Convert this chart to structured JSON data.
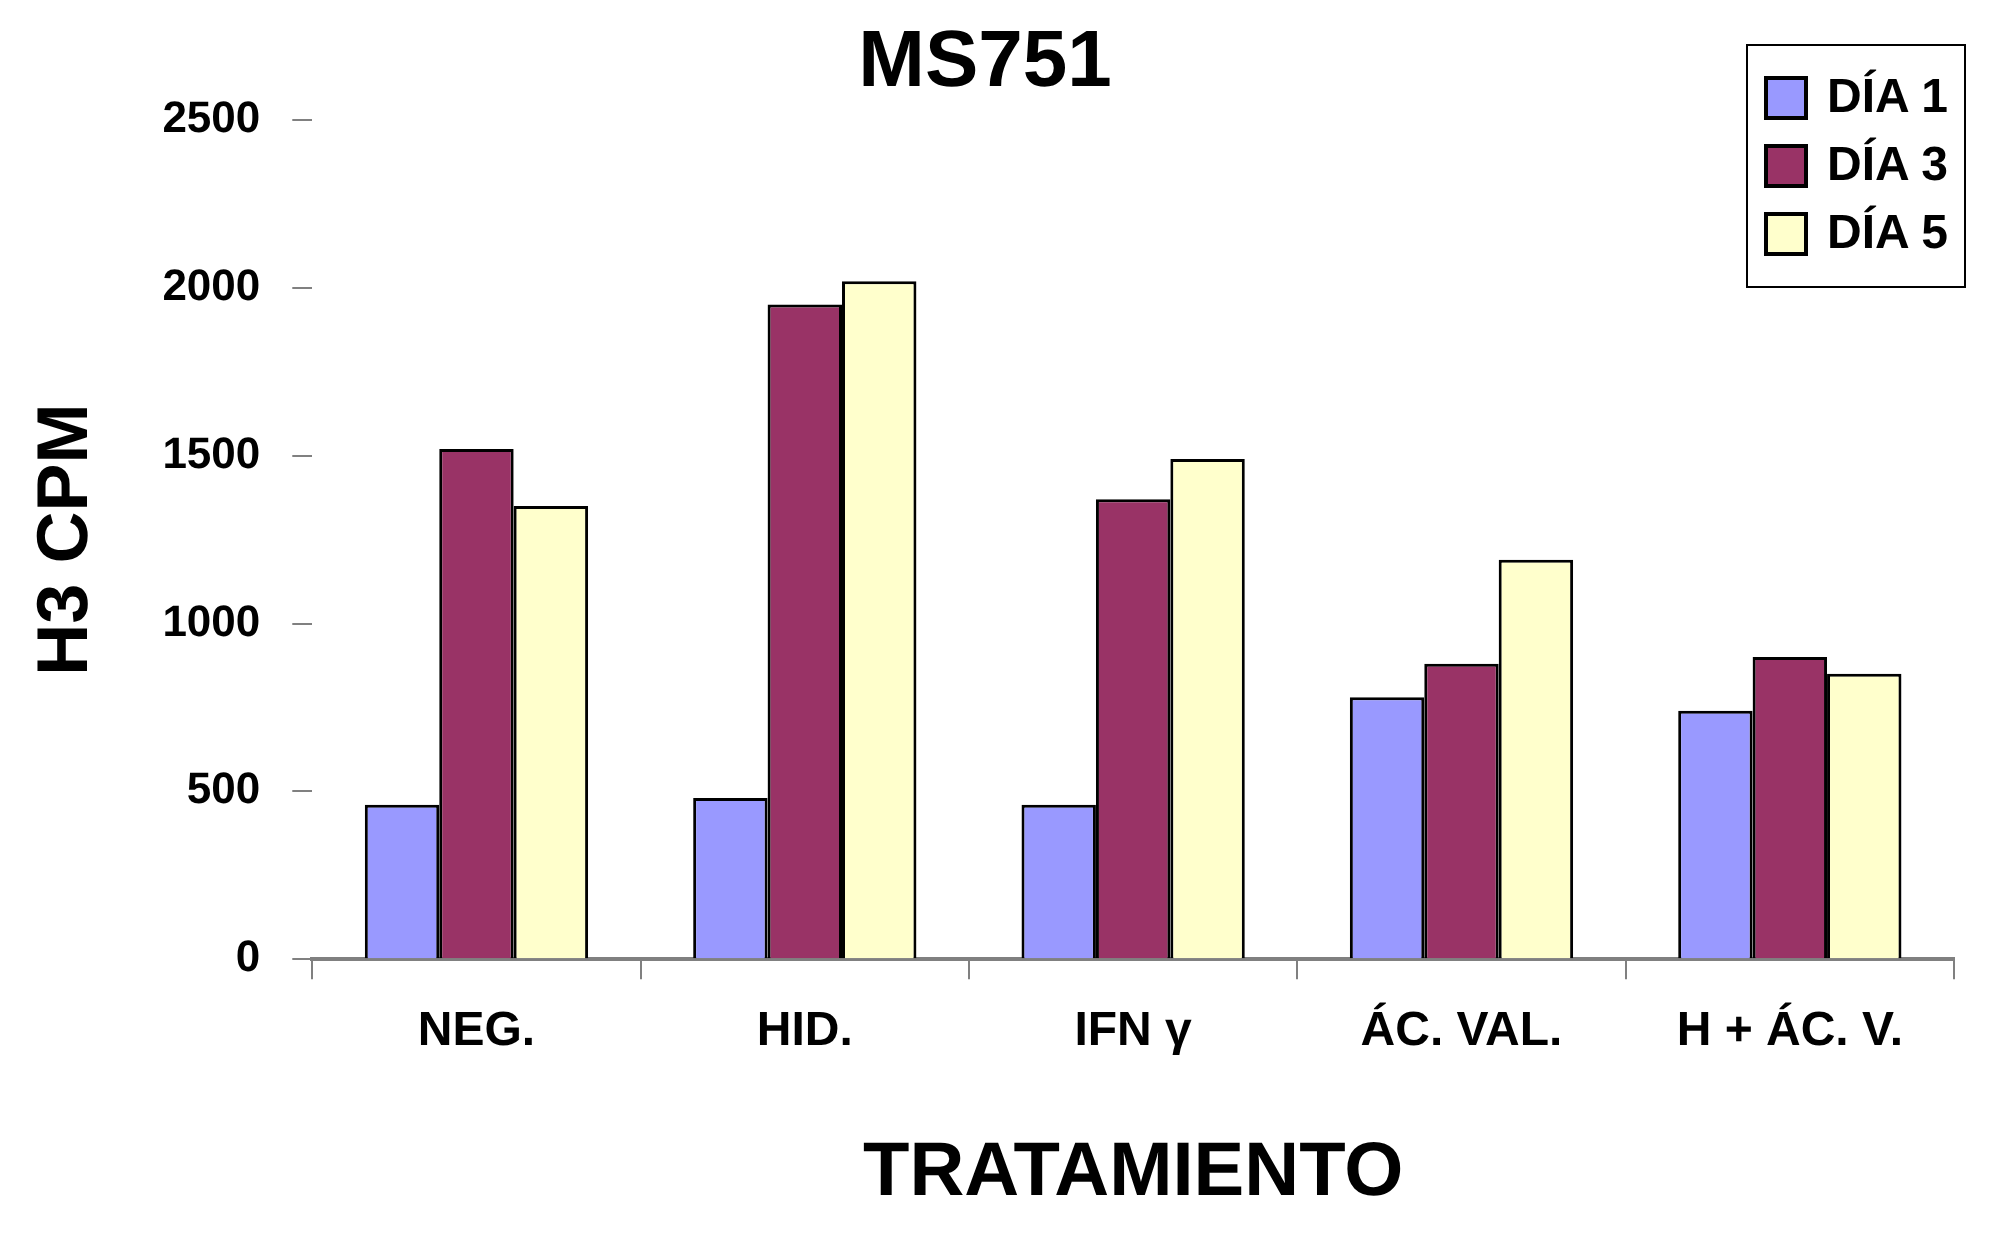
{
  "chart_data": {
    "type": "bar",
    "title": "MS751",
    "xlabel": "TRATAMIENTO",
    "ylabel": "H3 CPM",
    "categories": [
      "NEG.",
      "HID.",
      "IFN γ",
      "ÁC. VAL.",
      "H + ÁC. V."
    ],
    "series": [
      {
        "name": "DÍA 1",
        "color": "#9999ff",
        "values": [
          460,
          480,
          460,
          780,
          740
        ]
      },
      {
        "name": "DÍA 3",
        "color": "#993366",
        "values": [
          1520,
          1950,
          1370,
          880,
          900
        ]
      },
      {
        "name": "DÍA 5",
        "color": "#ffffcc",
        "values": [
          1350,
          2020,
          1490,
          1190,
          850
        ]
      }
    ],
    "ylim": [
      0,
      2500
    ],
    "yticks": [
      0,
      500,
      1000,
      1500,
      2000,
      2500
    ],
    "grid": false,
    "legend": "top right"
  }
}
